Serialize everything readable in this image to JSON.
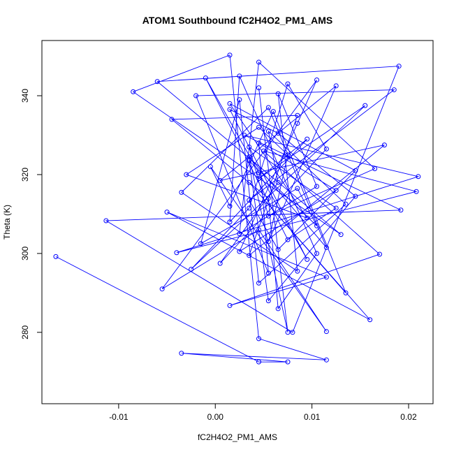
{
  "chart_data": {
    "type": "line",
    "markers": true,
    "title": "ATOM1 Southbound fC2H4O2_PM1_AMS",
    "x_label": "fC2H4O2_PM1_AMS",
    "y_label": "Theta (K)",
    "xlim": [
      -0.01794,
      0.02253
    ],
    "ylim": [
      261.9,
      354.0
    ],
    "xticks": [
      -0.01,
      {
        "value": 0,
        "label": "0.00"
      },
      0.01,
      0.02
    ],
    "yticks": [
      280,
      300,
      320,
      340
    ],
    "series": [
      {
        "name": "fC2H4O2_PM1_AMS",
        "color": "#0000ff",
        "x": [
          -0.0165,
          0.0045,
          0.0075,
          -0.0035,
          0.0115,
          0.0045,
          0.0015,
          -0.0085,
          0.013,
          -0.006,
          0.019,
          0.008,
          -0.0113,
          0.0192,
          0.003,
          0.021,
          -0.004,
          0.0208,
          0.005,
          0.017,
          0.0015,
          0.0115,
          -0.005,
          0.016,
          0.0035,
          0.0135,
          0.006,
          0.0015,
          -0.0005,
          0.0115,
          0.0045,
          -0.0055,
          0.0105,
          0.0085,
          0.0025,
          0.0125,
          0.0045,
          0.0055,
          -0.002,
          0.0185,
          0.0035,
          0.0065,
          0.0145,
          0.0015,
          0.0095,
          -0.003,
          0.0045,
          0.0075,
          0.0055,
          0.0125,
          0.0005,
          0.0175,
          0.0035,
          0.0085,
          -0.0045,
          0.0055,
          0.0065,
          0.0105,
          0.0025,
          0.0015,
          0.0095,
          0.0045,
          0.0155,
          -0.0025,
          0.0035,
          0.0075,
          0.0115,
          0.0005,
          0.0065,
          0.0055,
          0.0135,
          0.0045,
          0.0025,
          -0.0015,
          0.0085,
          0.0105,
          0.0035,
          0.0055,
          0.0145,
          0.0065,
          0.0015,
          0.0095,
          0.0045,
          -0.001,
          0.0075,
          0.0125,
          0.0035,
          0.0055,
          0.0165,
          0.0045,
          0.0025,
          0.0105,
          0.0065,
          0.0085,
          -0.0035,
          0.0055,
          0.0115,
          0.0035,
          0.0075,
          0.0045
        ],
        "y": [
          299.2,
          272.5,
          272.5,
          274.7,
          273.0,
          278.4,
          350.3,
          341.0,
          304.8,
          343.6,
          347.5,
          280.0,
          308.3,
          311.0,
          330.0,
          319.5,
          300.2,
          315.7,
          326.0,
          299.8,
          286.8,
          294.0,
          310.5,
          283.2,
          318.0,
          290.0,
          336.0,
          312.0,
          322.0,
          280.2,
          306.0,
          291.0,
          344.0,
          333.0,
          300.5,
          316.0,
          328.0,
          295.0,
          340.0,
          341.5,
          313.5,
          301.0,
          321.0,
          338.0,
          309.0,
          320.0,
          332.0,
          325.0,
          303.0,
          342.5,
          318.5,
          327.5,
          299.5,
          335.0,
          334.0,
          314.0,
          286.0,
          300.0,
          345.0,
          308.0,
          329.0,
          319.0,
          337.5,
          296.0,
          311.5,
          343.0,
          326.5,
          297.5,
          318.0,
          331.0,
          312.5,
          292.5,
          339.0,
          302.5,
          316.5,
          307.0,
          323.5,
          288.0,
          314.5,
          330.5,
          336.5,
          298.5,
          320.5,
          344.5,
          303.5,
          311.5,
          327.0,
          309.5,
          321.5,
          348.5,
          305.0,
          317.0,
          340.5,
          295.5,
          315.5,
          337.0,
          301.5,
          324.5,
          280.0,
          342.0
        ]
      }
    ]
  }
}
